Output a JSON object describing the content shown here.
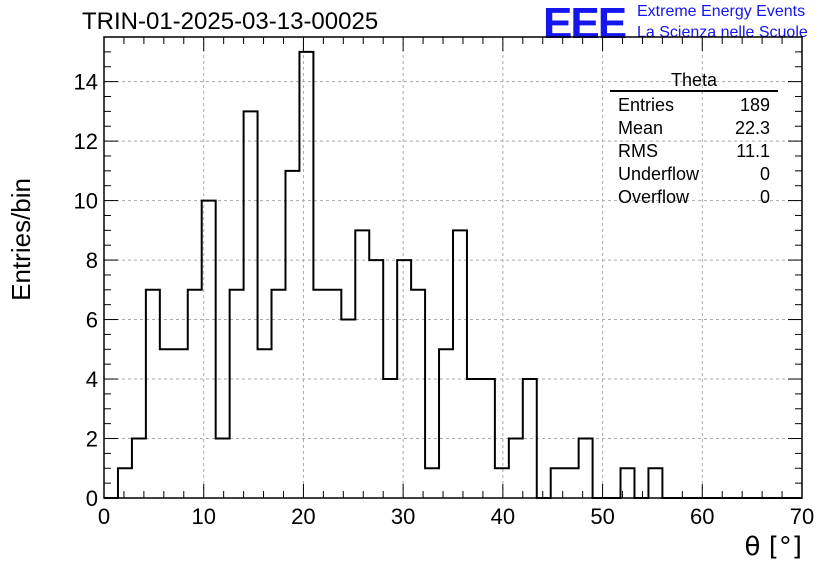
{
  "title": "TRIN-01-2025-03-13-00025",
  "logo": {
    "mark": "EEE",
    "line1": "Extreme Energy Events",
    "line2": "La Scienza nelle Scuole"
  },
  "stats": {
    "title": "Theta",
    "rows": [
      {
        "label": "Entries",
        "value": "189"
      },
      {
        "label": "Mean",
        "value": "22.3"
      },
      {
        "label": "RMS",
        "value": "11.1"
      },
      {
        "label": "Underflow",
        "value": "0"
      },
      {
        "label": "Overflow",
        "value": "0"
      }
    ]
  },
  "colors": {
    "line": "#000000",
    "grid": "#aaaaaa",
    "logo": "#1515ee"
  },
  "chart_data": {
    "type": "bar",
    "style": "step histogram",
    "xlabel": "θ [°]",
    "ylabel": "Entries/bin",
    "xlim": [
      0,
      70
    ],
    "ylim": [
      0,
      15.5
    ],
    "grid": true,
    "legend": "top-right",
    "bin_width": 1.4,
    "bin_edges_start": 0,
    "values": [
      0,
      1,
      2,
      7,
      5,
      5,
      7,
      10,
      2,
      7,
      13,
      5,
      7,
      11,
      15,
      7,
      7,
      6,
      9,
      8,
      4,
      8,
      7,
      1,
      5,
      9,
      4,
      4,
      1,
      2,
      4,
      0,
      1,
      1,
      2,
      0,
      0,
      1,
      0,
      1,
      0,
      0,
      0,
      0,
      0,
      0,
      0,
      0,
      0,
      0
    ],
    "x_ticks": [
      "0",
      "10",
      "20",
      "30",
      "40",
      "50",
      "60",
      "70"
    ],
    "y_ticks": [
      "0",
      "2",
      "4",
      "6",
      "8",
      "10",
      "12",
      "14"
    ]
  }
}
